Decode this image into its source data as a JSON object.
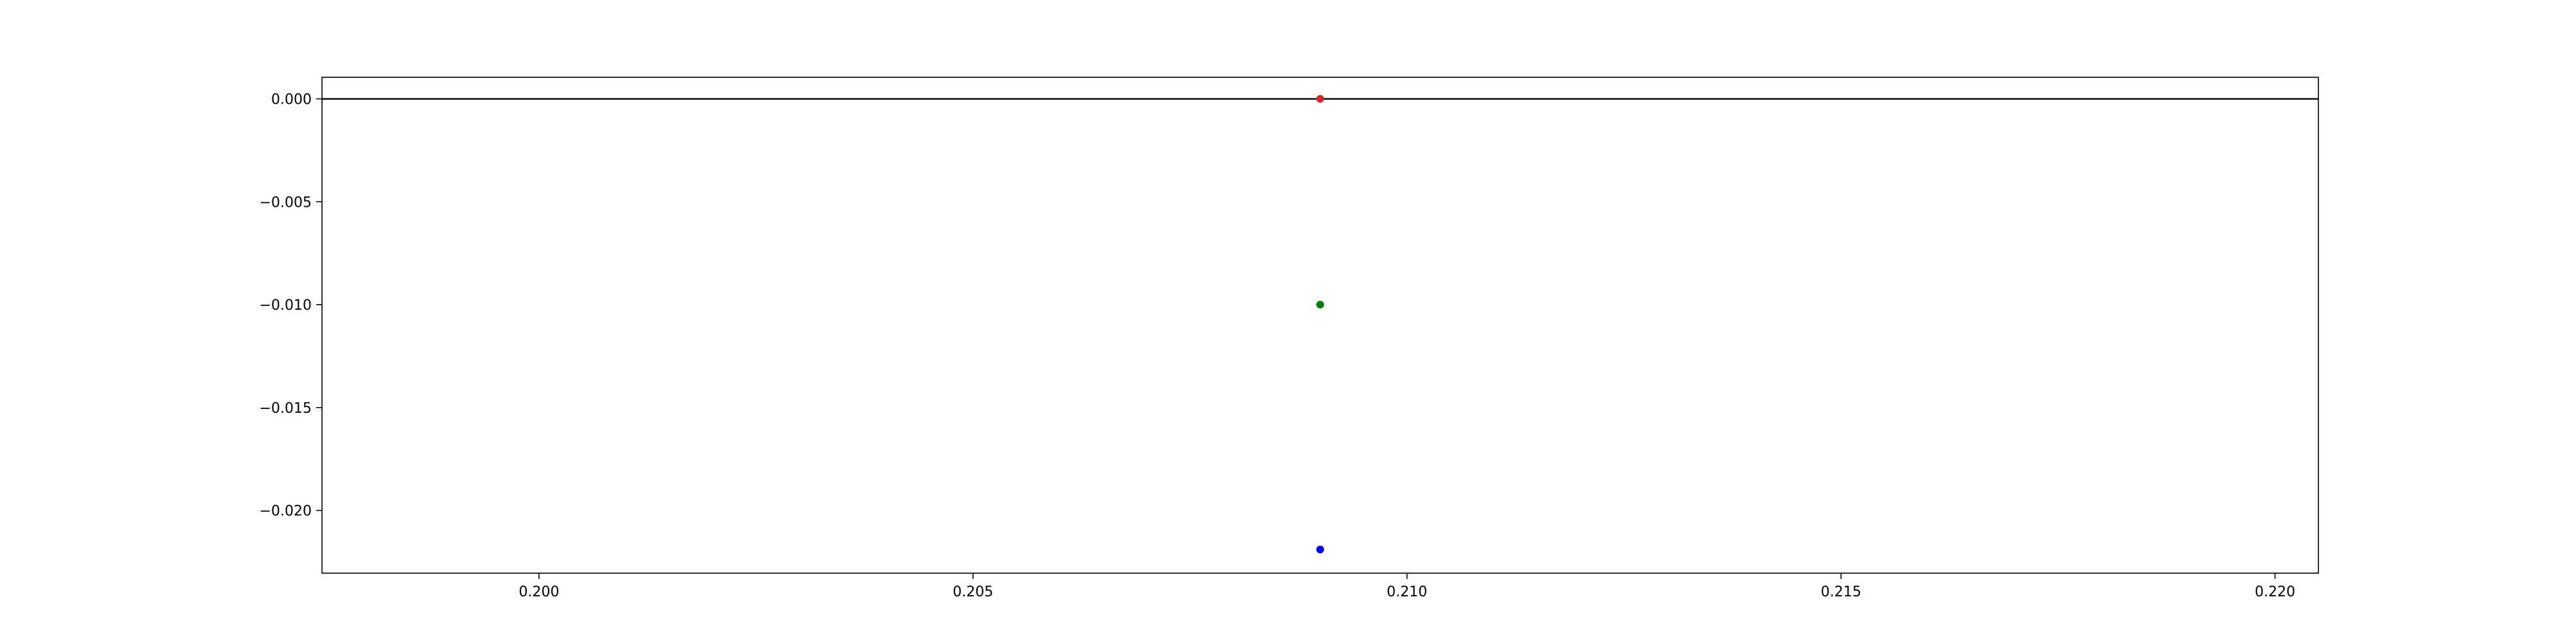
{
  "chart_data": {
    "type": "scatter",
    "title": "",
    "xlabel": "",
    "ylabel": "",
    "xlim": [
      0.1975,
      0.2205
    ],
    "ylim": [
      -0.02305,
      0.00105
    ],
    "grid": false,
    "x_ticks": [
      0.2,
      0.205,
      0.21,
      0.215,
      0.22
    ],
    "x_tick_labels": [
      "0.200",
      "0.205",
      "0.210",
      "0.215",
      "0.220"
    ],
    "y_ticks": [
      0.0,
      -0.005,
      -0.01,
      -0.015,
      -0.02
    ],
    "y_tick_labels": [
      "0.000",
      "−0.005",
      "−0.010",
      "−0.015",
      "−0.020"
    ],
    "hlines": [
      {
        "y": 0.0,
        "color": "#000000"
      }
    ],
    "series": [
      {
        "color": "#d62728",
        "points": [
          {
            "x": 0.209,
            "y": 0.0
          }
        ]
      },
      {
        "color": "#008000",
        "points": [
          {
            "x": 0.209,
            "y": -0.01
          }
        ]
      },
      {
        "color": "#0000ff",
        "points": [
          {
            "x": 0.209,
            "y": -0.0219
          }
        ]
      }
    ]
  }
}
